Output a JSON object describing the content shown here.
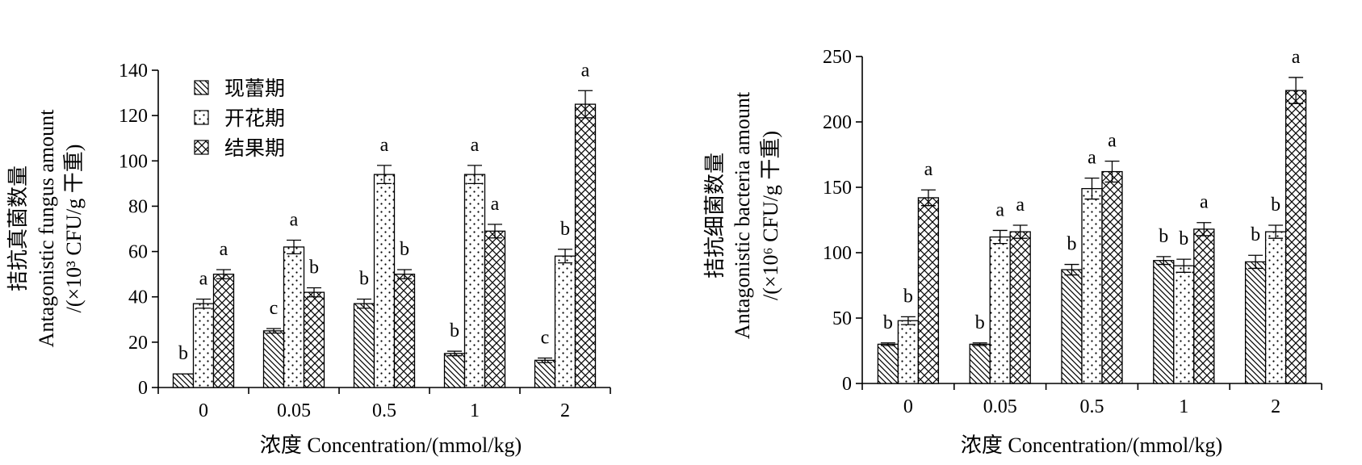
{
  "chart_data": [
    {
      "type": "bar",
      "categories": [
        "0",
        "0.05",
        "0.5",
        "1",
        "2"
      ],
      "xlabel": "浓度 Concentration/(mmol/kg)",
      "ylabel": [
        "拮抗真菌数量",
        "Antagonistic fungus amount",
        "/(×10³ CFU/g 干重)"
      ],
      "ylim": [
        0,
        140
      ],
      "yticks": [
        0,
        20,
        40,
        60,
        80,
        100,
        120,
        140
      ],
      "grid": false,
      "legend": "top-left",
      "series": [
        {
          "name": "现蕾期",
          "pattern": "diagonal-hatch",
          "values": [
            6,
            25,
            37,
            15,
            12
          ],
          "errors": [
            0,
            1,
            2,
            1,
            1
          ],
          "letters": [
            "b",
            "c",
            "b",
            "b",
            "c"
          ]
        },
        {
          "name": "开花期",
          "pattern": "dots",
          "values": [
            37,
            62,
            94,
            94,
            58
          ],
          "errors": [
            2,
            3,
            4,
            4,
            3
          ],
          "letters": [
            "a",
            "a",
            "a",
            "a",
            "b"
          ]
        },
        {
          "name": "结果期",
          "pattern": "cross-hatch",
          "values": [
            50,
            42,
            50,
            69,
            125
          ],
          "errors": [
            2,
            2,
            2,
            3,
            6
          ],
          "letters": [
            "a",
            "b",
            "b",
            "a",
            "a"
          ]
        }
      ]
    },
    {
      "type": "bar",
      "categories": [
        "0",
        "0.05",
        "0.5",
        "1",
        "2"
      ],
      "xlabel": "浓度 Concentration/(mmol/kg)",
      "ylabel": [
        "拮抗细菌数量",
        "Antagonistic bacteria amount",
        "/(×10⁶ CFU/g 干重)"
      ],
      "ylim": [
        0,
        250
      ],
      "yticks": [
        0,
        50,
        100,
        150,
        200,
        250
      ],
      "grid": false,
      "legend": "none",
      "series": [
        {
          "pattern": "diagonal-hatch",
          "values": [
            30,
            30,
            87,
            94,
            93
          ],
          "errors": [
            1,
            1,
            4,
            3,
            5
          ],
          "letters": [
            "b",
            "b",
            "b",
            "b",
            "b"
          ]
        },
        {
          "pattern": "dots",
          "values": [
            48,
            112,
            149,
            90,
            116
          ],
          "errors": [
            3,
            5,
            8,
            5,
            5
          ],
          "letters": [
            "b",
            "a",
            "a",
            "b",
            "b"
          ]
        },
        {
          "pattern": "cross-hatch",
          "values": [
            142,
            116,
            162,
            118,
            224
          ],
          "errors": [
            6,
            5,
            8,
            5,
            10
          ],
          "letters": [
            "a",
            "a",
            "a",
            "a",
            "a"
          ]
        }
      ]
    }
  ]
}
